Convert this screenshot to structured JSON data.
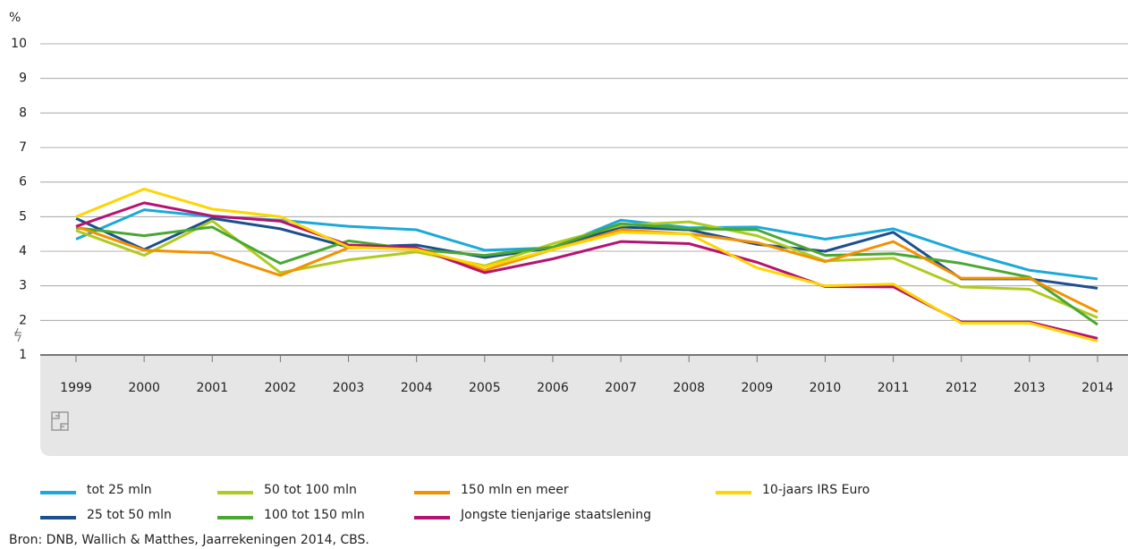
{
  "chart_data": {
    "type": "line",
    "y_unit": "%",
    "categories": [
      "1999",
      "2000",
      "2001",
      "2002",
      "2003",
      "2004",
      "2005",
      "2006",
      "2007",
      "2008",
      "2009",
      "2010",
      "2011",
      "2012",
      "2013",
      "2014"
    ],
    "ylim": [
      1,
      10
    ],
    "yticks": [
      1,
      2,
      3,
      4,
      5,
      6,
      7,
      8,
      9,
      10
    ],
    "grid": true,
    "series": [
      {
        "name": "tot 25 mln",
        "color": "#1ba9d9",
        "values": [
          4.35,
          5.2,
          5.0,
          4.9,
          4.72,
          4.62,
          4.03,
          4.1,
          4.9,
          4.68,
          4.7,
          4.35,
          4.65,
          4.0,
          3.45,
          3.2
        ]
      },
      {
        "name": "25 tot 50 mln",
        "color": "#1c4f8e",
        "values": [
          4.95,
          4.05,
          4.95,
          4.65,
          4.12,
          4.18,
          3.82,
          4.1,
          4.7,
          4.62,
          4.2,
          4.0,
          4.55,
          3.2,
          3.2,
          2.93
        ]
      },
      {
        "name": "50 tot 100 mln",
        "color": "#afcb1e",
        "values": [
          4.6,
          3.88,
          4.88,
          3.38,
          3.75,
          3.98,
          3.58,
          4.22,
          4.75,
          4.85,
          4.45,
          3.72,
          3.8,
          2.97,
          2.9,
          2.08
        ]
      },
      {
        "name": "100 tot 150 mln",
        "color": "#4aa832",
        "values": [
          4.68,
          4.45,
          4.7,
          3.65,
          4.3,
          4.05,
          3.88,
          4.12,
          4.8,
          4.65,
          4.62,
          3.88,
          3.93,
          3.65,
          3.25,
          1.88
        ]
      },
      {
        "name": "150 mln en meer",
        "color": "#f39200",
        "values": [
          4.72,
          4.03,
          3.95,
          3.3,
          4.1,
          4.1,
          3.45,
          4.05,
          4.62,
          4.5,
          4.25,
          3.7,
          4.28,
          3.22,
          3.22,
          2.25
        ]
      },
      {
        "name": "Jongste tienjarige staatslening",
        "color": "#b5136f",
        "values": [
          4.72,
          5.4,
          5.02,
          4.87,
          4.18,
          4.1,
          3.38,
          3.78,
          4.28,
          4.22,
          3.68,
          2.98,
          2.97,
          1.95,
          1.95,
          1.48
        ]
      },
      {
        "name": "10-jaars IRS Euro",
        "color": "#ffd500",
        "values": [
          5.0,
          5.8,
          5.22,
          5.0,
          4.12,
          4.05,
          3.55,
          4.05,
          4.55,
          4.5,
          3.52,
          3.0,
          3.05,
          1.92,
          1.92,
          1.4
        ]
      }
    ],
    "source": "Bron: DNB, Wallich & Matthes,  Jaarrekeningen 2014, CBS."
  }
}
